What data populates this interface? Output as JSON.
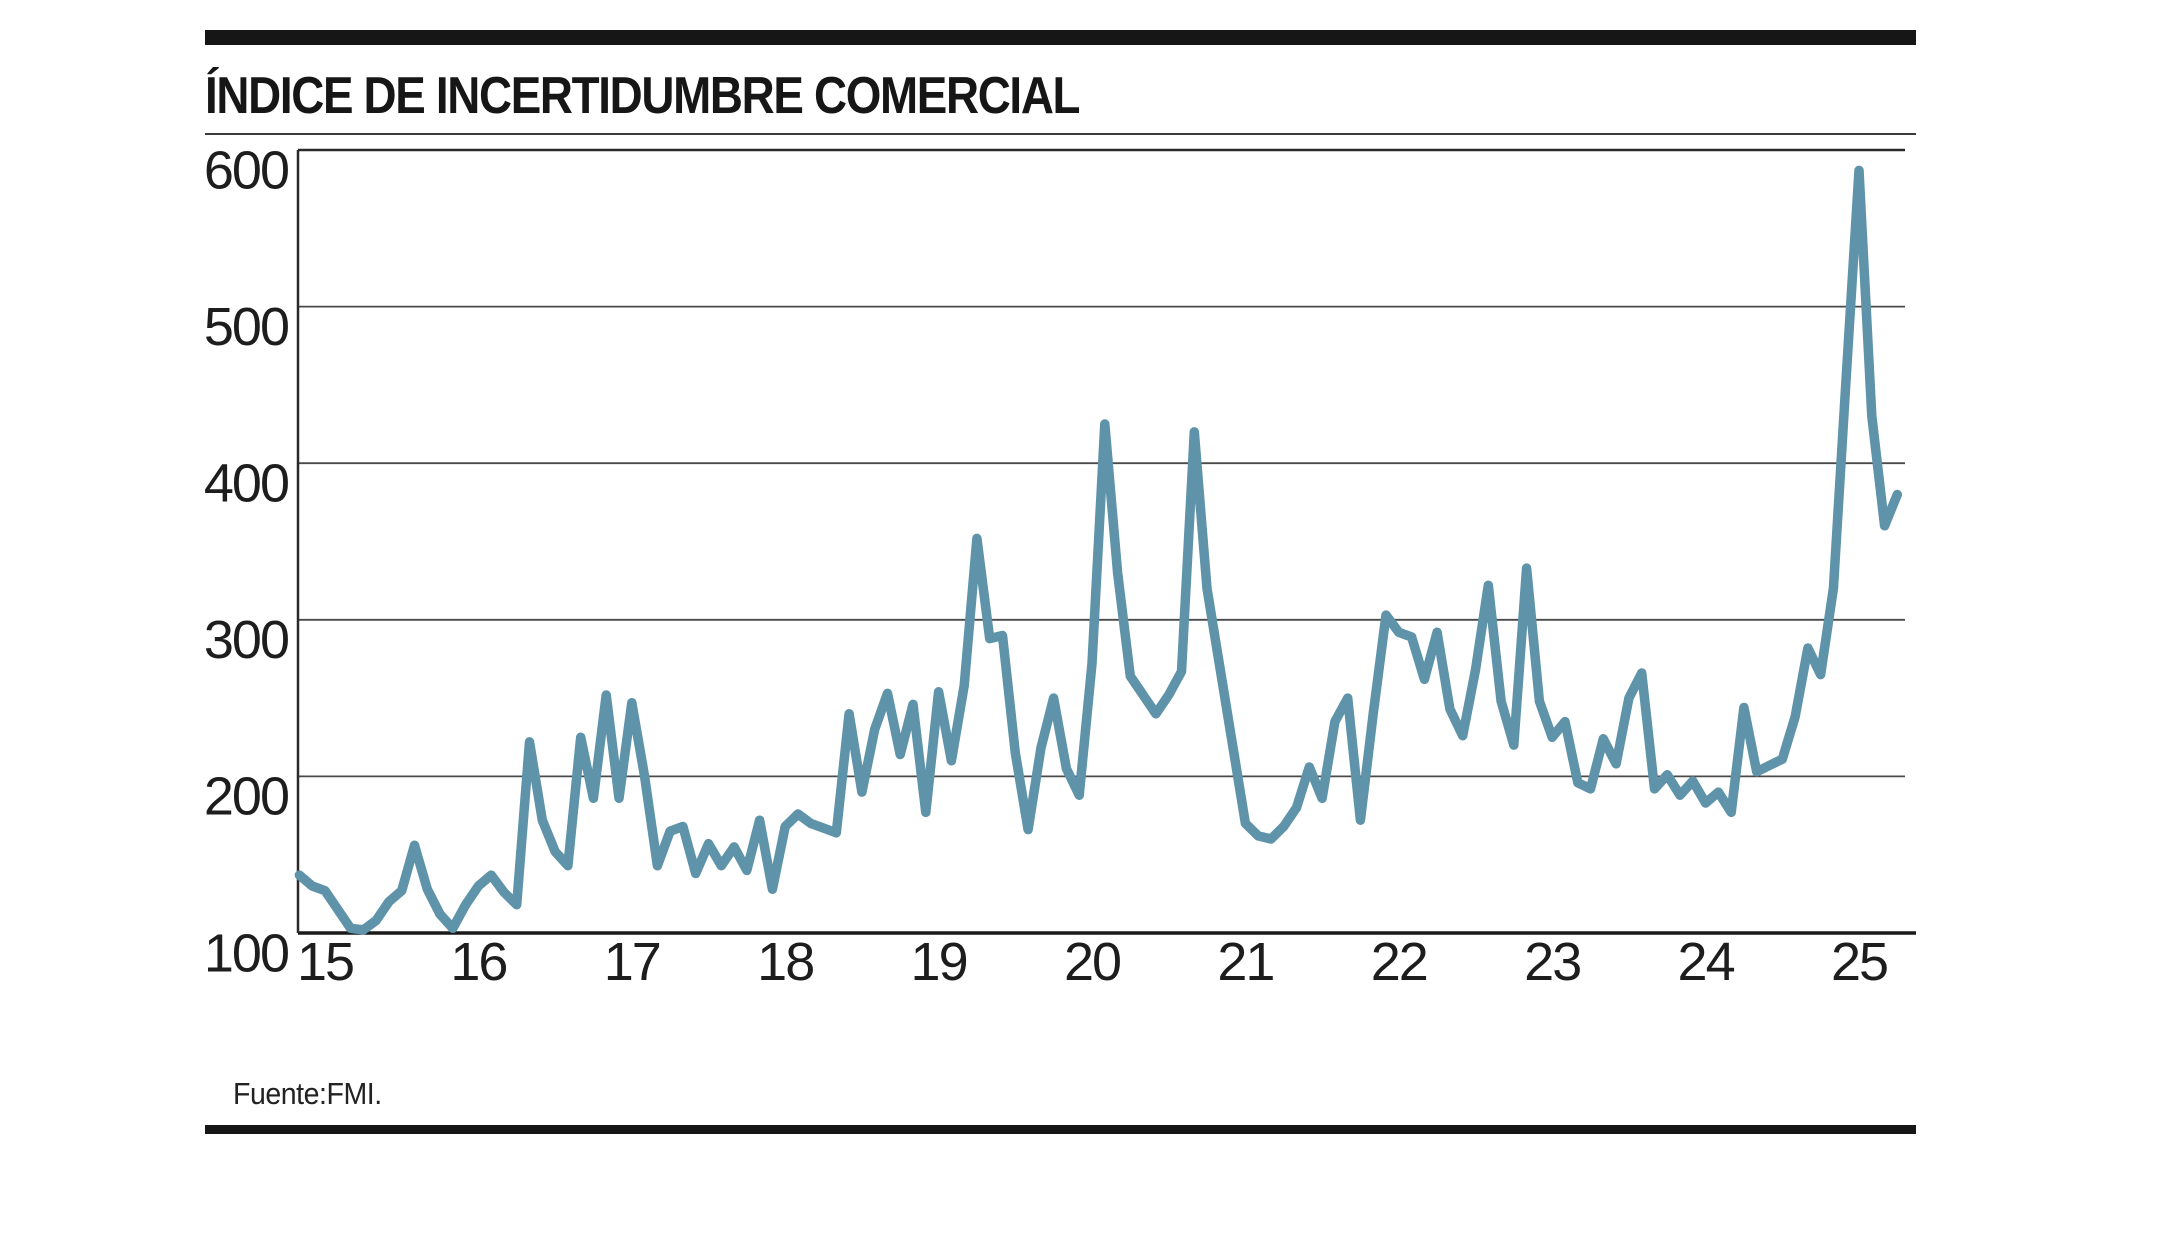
{
  "header": {
    "title": "ÍNDICE DE INCERTIDUMBRE COMERCIAL"
  },
  "source": {
    "label": "Fuente:FMI."
  },
  "chart_data": {
    "type": "line",
    "title": "ÍNDICE DE INCERTIDUMBRE COMERCIAL",
    "series_name": "Índice de incertidumbre comercial",
    "xlabel": "",
    "ylabel": "",
    "ylim": [
      100,
      600
    ],
    "y_ticks": [
      600,
      500,
      400,
      300,
      200,
      100
    ],
    "x_ticks": [
      {
        "label": "15",
        "index": 2
      },
      {
        "label": "16",
        "index": 14
      },
      {
        "label": "17",
        "index": 26
      },
      {
        "label": "18",
        "index": 38
      },
      {
        "label": "19",
        "index": 50
      },
      {
        "label": "20",
        "index": 62
      },
      {
        "label": "21",
        "index": 74
      },
      {
        "label": "22",
        "index": 86
      },
      {
        "label": "23",
        "index": 98
      },
      {
        "label": "24",
        "index": 110
      },
      {
        "label": "25",
        "index": 122
      }
    ],
    "grid": "horizontal",
    "legend": "none",
    "line_color": "#5e93a9",
    "axis_color": "#1a1a1a",
    "grid_color": "#4a4a4a",
    "x": [
      "2014-11",
      "2014-12",
      "2015-01",
      "2015-02",
      "2015-03",
      "2015-04",
      "2015-05",
      "2015-06",
      "2015-07",
      "2015-08",
      "2015-09",
      "2015-10",
      "2015-11",
      "2015-12",
      "2016-01",
      "2016-02",
      "2016-03",
      "2016-04",
      "2016-05",
      "2016-06",
      "2016-07",
      "2016-08",
      "2016-09",
      "2016-10",
      "2016-11",
      "2016-12",
      "2017-01",
      "2017-02",
      "2017-03",
      "2017-04",
      "2017-05",
      "2017-06",
      "2017-07",
      "2017-08",
      "2017-09",
      "2017-10",
      "2017-11",
      "2017-12",
      "2018-01",
      "2018-02",
      "2018-03",
      "2018-04",
      "2018-05",
      "2018-06",
      "2018-07",
      "2018-08",
      "2018-09",
      "2018-10",
      "2018-11",
      "2018-12",
      "2019-01",
      "2019-02",
      "2019-03",
      "2019-04",
      "2019-05",
      "2019-06",
      "2019-07",
      "2019-08",
      "2019-09",
      "2019-10",
      "2019-11",
      "2019-12",
      "2020-01",
      "2020-02",
      "2020-03",
      "2020-04",
      "2020-05",
      "2020-06",
      "2020-07",
      "2020-08",
      "2020-09",
      "2020-10",
      "2020-11",
      "2020-12",
      "2021-01",
      "2021-02",
      "2021-03",
      "2021-04",
      "2021-05",
      "2021-06",
      "2021-07",
      "2021-08",
      "2021-09",
      "2021-10",
      "2021-11",
      "2021-12",
      "2022-01",
      "2022-02",
      "2022-03",
      "2022-04",
      "2022-05",
      "2022-06",
      "2022-07",
      "2022-08",
      "2022-09",
      "2022-10",
      "2022-11",
      "2022-12",
      "2023-01",
      "2023-02",
      "2023-03",
      "2023-04",
      "2023-05",
      "2023-06",
      "2023-07",
      "2023-08",
      "2023-09",
      "2023-10",
      "2023-11",
      "2023-12",
      "2024-01",
      "2024-02",
      "2024-03",
      "2024-04",
      "2024-05",
      "2024-06",
      "2024-07",
      "2024-08",
      "2024-09",
      "2024-10",
      "2024-11",
      "2024-12",
      "2025-01",
      "2025-02",
      "2025-03",
      "2025-04"
    ],
    "values": [
      137,
      130,
      127,
      115,
      103,
      102,
      108,
      120,
      127,
      156,
      128,
      112,
      103,
      118,
      130,
      137,
      126,
      118,
      222,
      172,
      152,
      143,
      225,
      186,
      252,
      186,
      247,
      200,
      143,
      165,
      168,
      138,
      157,
      143,
      155,
      140,
      172,
      128,
      168,
      176,
      170,
      167,
      164,
      240,
      190,
      230,
      253,
      214,
      246,
      177,
      254,
      210,
      258,
      352,
      288,
      290,
      215,
      166,
      218,
      250,
      205,
      188,
      272,
      425,
      330,
      264,
      252,
      240,
      252,
      267,
      420,
      320,
      270,
      220,
      170,
      162,
      160,
      168,
      180,
      206,
      186,
      235,
      250,
      172,
      240,
      303,
      292,
      289,
      262,
      292,
      243,
      226,
      268,
      322,
      248,
      220,
      333,
      248,
      225,
      235,
      196,
      192,
      224,
      208,
      250,
      266,
      192,
      201,
      188,
      197,
      183,
      190,
      177,
      244,
      203,
      207,
      211,
      238,
      282,
      265,
      320,
      455,
      587,
      430,
      360,
      380
    ],
    "source": "Fuente:FMI."
  }
}
